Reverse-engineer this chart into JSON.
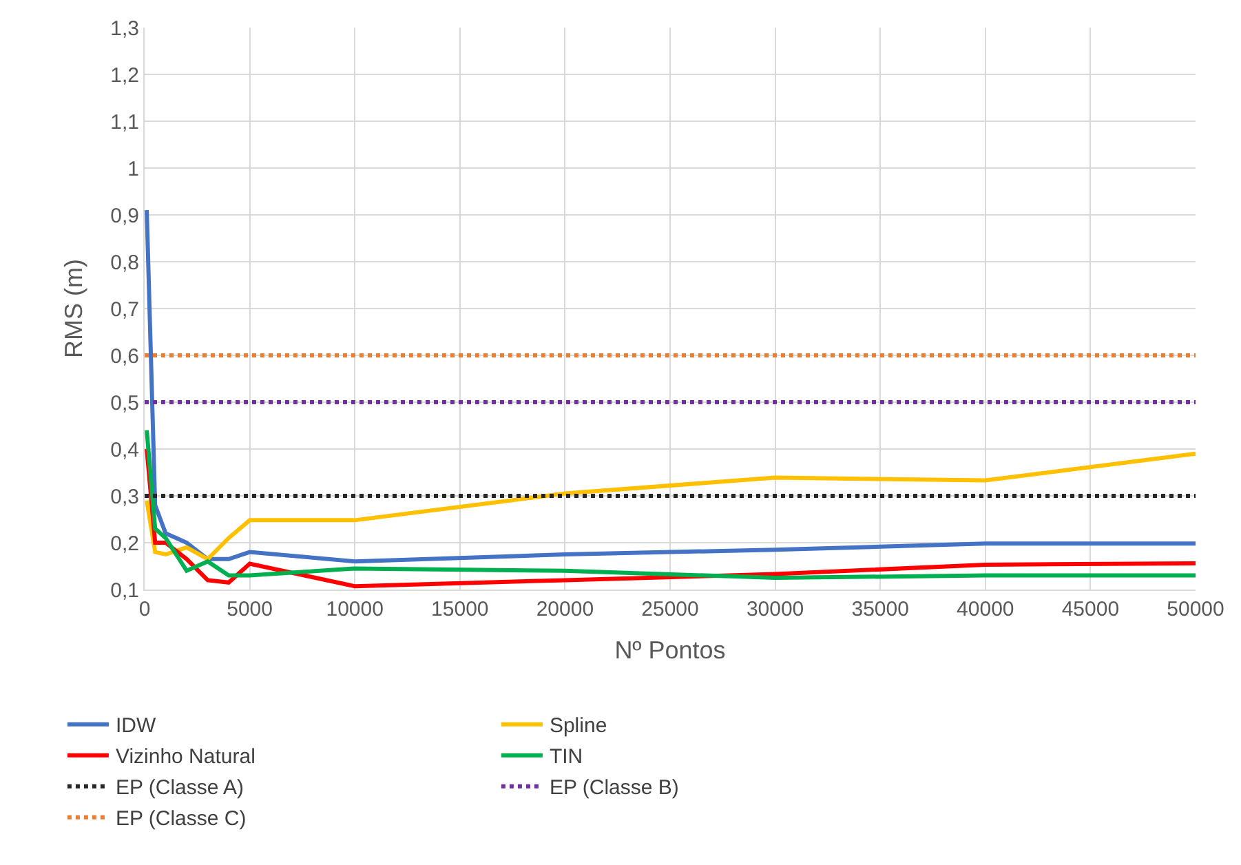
{
  "chart_data": {
    "type": "line",
    "xlabel": "Nº Pontos",
    "ylabel": "RMS (m)",
    "x": [
      100,
      500,
      1000,
      2000,
      3000,
      4000,
      5000,
      10000,
      20000,
      30000,
      40000,
      50000
    ],
    "series": [
      {
        "name": "IDW",
        "color": "#4472c4",
        "values": [
          0.91,
          0.28,
          0.22,
          0.2,
          0.165,
          0.165,
          0.18,
          0.16,
          0.175,
          0.185,
          0.198,
          0.198
        ]
      },
      {
        "name": "Spline",
        "color": "#ffc000",
        "values": [
          0.29,
          0.18,
          0.175,
          0.19,
          0.165,
          0.21,
          0.248,
          0.248,
          0.305,
          0.339,
          0.333,
          0.39
        ]
      },
      {
        "name": "Vizinho Natural",
        "color": "#ff0000",
        "values": [
          0.4,
          0.2,
          0.2,
          0.165,
          0.12,
          0.115,
          0.155,
          0.107,
          0.12,
          0.133,
          0.153,
          0.156
        ]
      },
      {
        "name": "TIN",
        "color": "#00b050",
        "values": [
          0.44,
          0.23,
          0.21,
          0.14,
          0.16,
          0.13,
          0.13,
          0.145,
          0.14,
          0.125,
          0.13,
          0.13
        ]
      }
    ],
    "ref_lines": [
      {
        "axis": "y",
        "value": 0.3,
        "label": "EP (Classe A)",
        "color": "#262626",
        "line_style": "dotted"
      },
      {
        "axis": "y",
        "value": 0.5,
        "label": "EP (Classe B)",
        "color": "#7030a0",
        "line_style": "dotted"
      },
      {
        "axis": "y",
        "value": 0.6,
        "label": "EP (Classe C)",
        "color": "#ed7d31",
        "line_style": "dotted"
      }
    ],
    "xlim": [
      0,
      50000
    ],
    "xticks": [
      0,
      5000,
      10000,
      15000,
      20000,
      25000,
      30000,
      35000,
      40000,
      45000,
      50000
    ],
    "ylim": [
      0.1,
      1.3
    ],
    "yticks": [
      {
        "value": 0.1,
        "label": "0,1"
      },
      {
        "value": 0.2,
        "label": "0,2"
      },
      {
        "value": 0.3,
        "label": "0,3"
      },
      {
        "value": 0.4,
        "label": "0,4"
      },
      {
        "value": 0.5,
        "label": "0,5"
      },
      {
        "value": 0.6,
        "label": "0,6"
      },
      {
        "value": 0.7,
        "label": "0,7"
      },
      {
        "value": 0.8,
        "label": "0,8"
      },
      {
        "value": 0.9,
        "label": "0,9"
      },
      {
        "value": 1,
        "label": "1"
      },
      {
        "value": 1.1,
        "label": "1,1"
      },
      {
        "value": 1.2,
        "label": "1,2"
      },
      {
        "value": 1.3,
        "label": "1,3"
      }
    ],
    "grid": true,
    "legend": "bottom",
    "marker": "none",
    "line_style": "solid"
  }
}
